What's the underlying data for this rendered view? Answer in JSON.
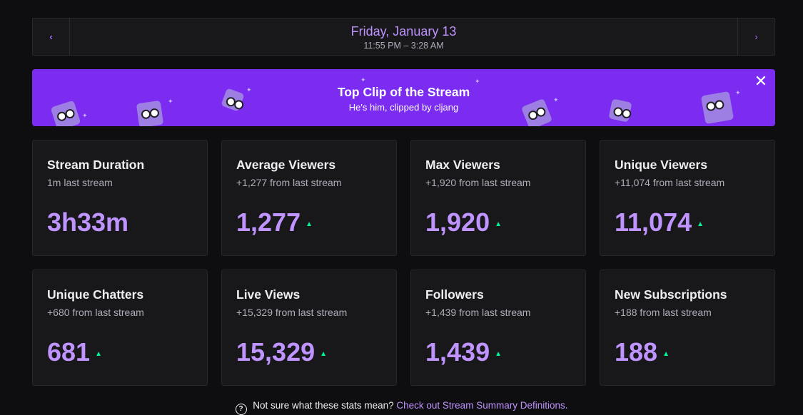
{
  "date_nav": {
    "title": "Friday, January 13",
    "time_range": "11:55 PM – 3:28 AM",
    "prev_icon": "chevron-left-icon",
    "next_icon": "chevron-right-icon"
  },
  "top_clip": {
    "title": "Top Clip of the Stream",
    "subtitle": "He's him, clipped by cljang",
    "close_icon": "close-icon"
  },
  "stats": [
    {
      "title": "Stream Duration",
      "sub": "1m last stream",
      "value": "3h33m",
      "trend": ""
    },
    {
      "title": "Average Viewers",
      "sub": "+1,277 from last stream",
      "value": "1,277",
      "trend": "up"
    },
    {
      "title": "Max Viewers",
      "sub": "+1,920 from last stream",
      "value": "1,920",
      "trend": "up"
    },
    {
      "title": "Unique Viewers",
      "sub": "+11,074 from last stream",
      "value": "11,074",
      "trend": "up"
    },
    {
      "title": "Unique Chatters",
      "sub": "+680 from last stream",
      "value": "681",
      "trend": "up"
    },
    {
      "title": "Live Views",
      "sub": "+15,329 from last stream",
      "value": "15,329",
      "trend": "up"
    },
    {
      "title": "Followers",
      "sub": "+1,439 from last stream",
      "value": "1,439",
      "trend": "up"
    },
    {
      "title": "New Subscriptions",
      "sub": "+188 from last stream",
      "value": "188",
      "trend": "up"
    }
  ],
  "footer": {
    "text": "Not sure what these stats mean?",
    "link_text": "Check out Stream Summary Definitions.",
    "icon": "help-circle-icon"
  },
  "colors": {
    "background": "#0e0e10",
    "card": "#18181b",
    "accent": "#bf94ff",
    "banner": "#7b2cf0",
    "trend_up": "#00f593"
  }
}
